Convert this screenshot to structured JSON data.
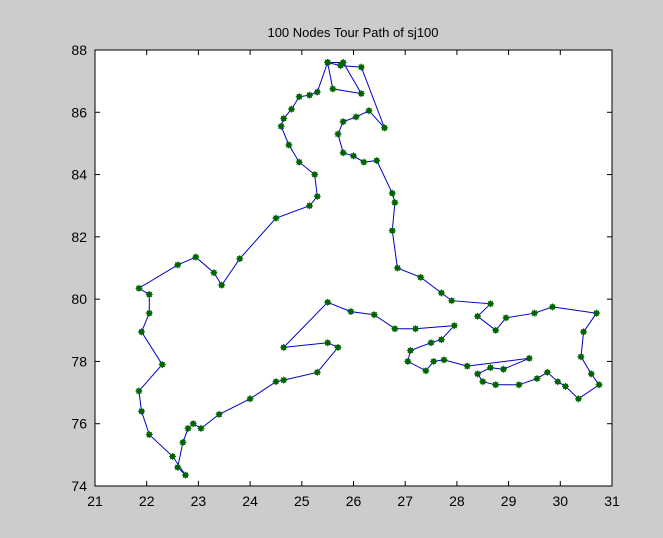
{
  "chart_data": {
    "type": "line",
    "title": "100 Nodes Tour Path of  sj100",
    "xlabel": "",
    "ylabel": "",
    "xlim": [
      21,
      31
    ],
    "ylim": [
      74,
      88
    ],
    "xticks": [
      "21",
      "22",
      "23",
      "24",
      "25",
      "26",
      "27",
      "28",
      "29",
      "30",
      "31"
    ],
    "yticks": [
      "74",
      "76",
      "78",
      "80",
      "82",
      "84",
      "86",
      "88"
    ],
    "grid": false,
    "line_color": "#0000cc",
    "marker_color": "#006600",
    "marker": "asterisk",
    "series": [
      {
        "x": [
          25.5,
          25.75,
          26.15,
          26.6,
          26.3,
          26.05,
          25.8,
          25.7,
          25.8,
          26.0,
          26.2,
          26.45,
          26.75,
          26.8,
          26.75,
          26.85,
          27.3,
          27.7,
          27.9,
          28.65,
          28.4,
          28.75,
          28.95,
          29.5,
          29.85,
          30.7,
          30.45,
          30.4,
          30.6,
          30.75,
          30.35,
          30.1,
          29.95,
          29.75,
          29.55,
          29.2,
          28.75,
          28.5,
          28.4,
          28.65,
          28.9,
          29.4,
          28.2,
          27.75,
          27.55,
          27.4,
          27.05,
          27.1,
          27.5,
          27.7,
          27.95,
          27.2,
          26.8,
          26.4,
          25.95,
          25.5,
          24.65,
          25.5,
          25.7,
          25.3,
          24.65,
          24.5,
          24.0,
          23.4,
          23.05,
          22.9,
          22.8,
          22.7,
          22.6,
          22.75,
          22.5,
          22.05,
          21.9,
          21.85,
          22.3,
          21.9,
          22.05,
          22.05,
          21.85,
          22.6,
          22.95,
          23.3,
          23.45,
          23.8,
          24.5,
          25.15,
          25.3,
          25.25,
          24.95,
          24.75,
          24.6,
          24.65,
          24.8,
          24.95,
          25.15,
          25.3,
          25.5,
          25.6,
          26.15,
          25.8,
          25.5
        ],
        "y": [
          87.6,
          87.5,
          87.45,
          85.5,
          86.05,
          85.85,
          85.7,
          85.3,
          84.7,
          84.6,
          84.4,
          84.45,
          83.4,
          83.1,
          82.2,
          81.0,
          80.7,
          80.2,
          79.95,
          79.85,
          79.45,
          79.0,
          79.4,
          79.55,
          79.75,
          79.55,
          78.95,
          78.15,
          77.6,
          77.25,
          76.8,
          77.2,
          77.35,
          77.65,
          77.45,
          77.25,
          77.25,
          77.35,
          77.6,
          77.8,
          77.75,
          78.1,
          77.85,
          78.05,
          78.0,
          77.7,
          78.0,
          78.35,
          78.6,
          78.7,
          79.15,
          79.05,
          79.05,
          79.5,
          79.6,
          79.9,
          78.45,
          78.6,
          78.45,
          77.65,
          77.4,
          77.35,
          76.8,
          76.3,
          75.85,
          76.0,
          75.85,
          75.4,
          74.6,
          74.35,
          74.95,
          75.65,
          76.4,
          77.05,
          77.9,
          78.95,
          79.55,
          80.15,
          80.35,
          81.1,
          81.35,
          80.85,
          80.45,
          81.3,
          82.6,
          83.0,
          83.3,
          84.0,
          84.4,
          84.95,
          85.55,
          85.8,
          86.1,
          86.5,
          86.55,
          86.65,
          87.6,
          86.75,
          86.6,
          87.6,
          87.6
        ]
      }
    ]
  }
}
